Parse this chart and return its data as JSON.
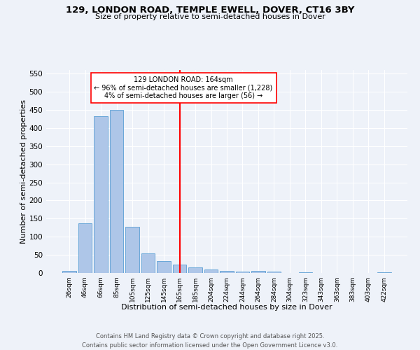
{
  "title_line1": "129, LONDON ROAD, TEMPLE EWELL, DOVER, CT16 3BY",
  "title_line2": "Size of property relative to semi-detached houses in Dover",
  "xlabel": "Distribution of semi-detached houses by size in Dover",
  "ylabel": "Number of semi-detached properties",
  "footer_line1": "Contains HM Land Registry data © Crown copyright and database right 2025.",
  "footer_line2": "Contains public sector information licensed under the Open Government Licence v3.0.",
  "bar_labels": [
    "26sqm",
    "46sqm",
    "66sqm",
    "85sqm",
    "105sqm",
    "125sqm",
    "145sqm",
    "165sqm",
    "185sqm",
    "204sqm",
    "224sqm",
    "244sqm",
    "264sqm",
    "284sqm",
    "304sqm",
    "323sqm",
    "343sqm",
    "363sqm",
    "383sqm",
    "403sqm",
    "422sqm"
  ],
  "bar_values": [
    5,
    137,
    433,
    450,
    128,
    54,
    32,
    23,
    15,
    9,
    6,
    3,
    5,
    3,
    0,
    1,
    0,
    0,
    0,
    0,
    2
  ],
  "bar_color": "#aec6e8",
  "bar_edge_color": "#5a9fd4",
  "vline_x": 7,
  "annotation_title": "129 LONDON ROAD: 164sqm",
  "annotation_line1": "← 96% of semi-detached houses are smaller (1,228)",
  "annotation_line2": "4% of semi-detached houses are larger (56) →",
  "ylim": [
    0,
    560
  ],
  "yticks": [
    0,
    50,
    100,
    150,
    200,
    250,
    300,
    350,
    400,
    450,
    500,
    550
  ],
  "background_color": "#eef2f9",
  "grid_color": "#ffffff"
}
